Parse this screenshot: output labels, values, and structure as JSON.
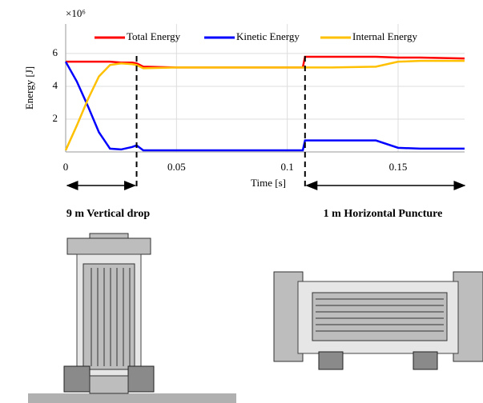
{
  "chart_data": {
    "type": "line",
    "y_multiplier": "×10⁶",
    "xlabel": "Time [s]",
    "ylabel": "Energy [J]",
    "x": [
      0,
      0.005,
      0.01,
      0.015,
      0.02,
      0.025,
      0.03,
      0.032,
      0.035,
      0.05,
      0.1,
      0.107,
      0.108,
      0.12,
      0.14,
      0.15,
      0.16,
      0.18
    ],
    "series": [
      {
        "name": "Total Energy",
        "color": "#ff0000",
        "values": [
          5.5,
          5.5,
          5.5,
          5.5,
          5.5,
          5.45,
          5.45,
          5.4,
          5.2,
          5.15,
          5.15,
          5.15,
          5.8,
          5.8,
          5.8,
          5.75,
          5.75,
          5.7
        ]
      },
      {
        "name": "Kinetic Energy",
        "color": "#0000ff",
        "values": [
          5.5,
          4.3,
          2.8,
          1.2,
          0.2,
          0.15,
          0.3,
          0.4,
          0.1,
          0.1,
          0.1,
          0.1,
          0.7,
          0.7,
          0.7,
          0.25,
          0.2,
          0.2
        ]
      },
      {
        "name": "Internal Energy",
        "color": "#ffc000",
        "values": [
          0.1,
          1.6,
          3.2,
          4.6,
          5.3,
          5.4,
          5.35,
          5.3,
          5.1,
          5.15,
          5.15,
          5.15,
          5.15,
          5.15,
          5.2,
          5.5,
          5.55,
          5.55
        ]
      }
    ],
    "xlim": [
      0,
      0.18
    ],
    "xticks": [
      0,
      0.05,
      0.1,
      0.15
    ],
    "ylim": [
      0,
      7.8
    ],
    "yticks": [
      2,
      4,
      6
    ],
    "grid": true,
    "vlines": [
      0.032,
      0.108
    ],
    "annotations": [
      "9 m Vertical drop",
      "1 m Horizontal Puncture"
    ]
  }
}
